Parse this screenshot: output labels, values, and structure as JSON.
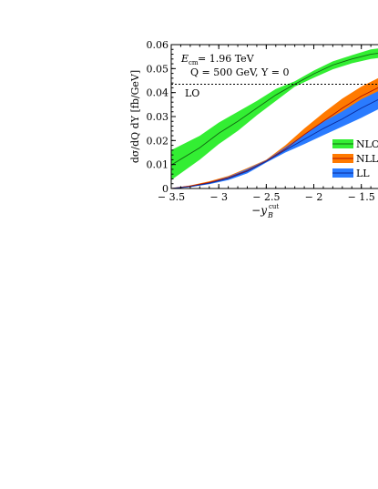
{
  "chart_data": {
    "type": "line",
    "title": "",
    "xlabel_main": "−y",
    "xlabel_sub": "B",
    "xlabel_sup": "cut",
    "ylabel": "dσ/dQ dY [fb/GeV]",
    "xlim": [
      -3.5,
      -1.2
    ],
    "ylim": [
      0,
      0.06
    ],
    "x_ticks": [
      -3.5,
      -3,
      -2.5,
      -2,
      -1.5
    ],
    "x_tick_labels": [
      "− 3.5",
      "− 3",
      "− 2.5",
      "− 2",
      "− 1.5"
    ],
    "y_ticks": [
      0,
      0.01,
      0.02,
      0.03,
      0.04,
      0.05,
      0.06
    ],
    "y_tick_labels": [
      "0",
      "0.01",
      "0.02",
      "0.03",
      "0.04",
      "0.05",
      "0.06"
    ],
    "annotations": {
      "ecm": "E",
      "ecm_sub": "cm",
      "ecm_val": " = 1.96 TeV",
      "q_line": "Q = 500 GeV, Y = 0",
      "lo_label": "LO"
    },
    "lo_value": 0.0435,
    "legend_position": "right",
    "series": [
      {
        "name": "NLO",
        "color": "#33ee33",
        "x": [
          -3.5,
          -3.2,
          -3.0,
          -2.8,
          -2.6,
          -2.4,
          -2.2,
          -2.0,
          -1.8,
          -1.6,
          -1.4,
          -1.2
        ],
        "central": [
          0.0098,
          0.017,
          0.023,
          0.028,
          0.0335,
          0.039,
          0.0435,
          0.0478,
          0.0515,
          0.054,
          0.056,
          0.057
        ],
        "lower": [
          0.0035,
          0.012,
          0.0185,
          0.024,
          0.0305,
          0.0365,
          0.0425,
          0.0462,
          0.0497,
          0.0522,
          0.054,
          0.055
        ],
        "upper": [
          0.016,
          0.022,
          0.0275,
          0.032,
          0.0365,
          0.0415,
          0.0447,
          0.0492,
          0.053,
          0.0556,
          0.058,
          0.059
        ]
      },
      {
        "name": "NLL",
        "color": "#ff7a00",
        "x": [
          -3.5,
          -3.3,
          -3.1,
          -2.9,
          -2.7,
          -2.5,
          -2.3,
          -2.1,
          -1.9,
          -1.7,
          -1.5,
          -1.3,
          -1.2
        ],
        "central": [
          0.0,
          0.001,
          0.0025,
          0.0045,
          0.0075,
          0.0115,
          0.0165,
          0.0225,
          0.028,
          0.0335,
          0.0385,
          0.0425,
          0.0445
        ],
        "lower": [
          0.0,
          0.0008,
          0.002,
          0.0038,
          0.0065,
          0.011,
          0.0155,
          0.02,
          0.0245,
          0.029,
          0.0335,
          0.037,
          0.039
        ],
        "upper": [
          0.0,
          0.0013,
          0.003,
          0.0052,
          0.0085,
          0.012,
          0.018,
          0.025,
          0.0315,
          0.0375,
          0.0425,
          0.0465,
          0.048
        ]
      },
      {
        "name": "LL",
        "color": "#2a7bff",
        "x": [
          -3.5,
          -3.3,
          -3.1,
          -2.9,
          -2.7,
          -2.5,
          -2.3,
          -2.1,
          -1.9,
          -1.7,
          -1.5,
          -1.3,
          -1.2
        ],
        "central": [
          0.0,
          0.0008,
          0.0022,
          0.0042,
          0.0072,
          0.0113,
          0.016,
          0.0205,
          0.025,
          0.029,
          0.0335,
          0.0375,
          0.039
        ],
        "lower": [
          0.0,
          0.0006,
          0.0018,
          0.0035,
          0.0063,
          0.0108,
          0.015,
          0.0185,
          0.0222,
          0.0258,
          0.0295,
          0.0335,
          0.035
        ],
        "upper": [
          0.0,
          0.001,
          0.0026,
          0.0049,
          0.0081,
          0.0118,
          0.0172,
          0.0225,
          0.0278,
          0.0322,
          0.0372,
          0.041,
          0.0425
        ]
      }
    ]
  }
}
